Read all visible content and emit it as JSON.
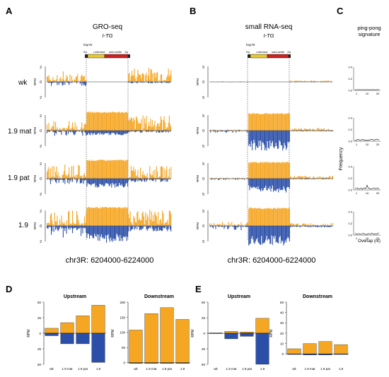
{
  "colors": {
    "sense": "#f5a623",
    "antisense": "#2b4fa8",
    "gene_box": "#e8c832",
    "mini_white": "#cc2222",
    "axis": "#222222"
  },
  "panels": {
    "A": {
      "letter": "A",
      "title": "GRO-seq",
      "subtitle": "I-TG",
      "construct": {
        "hsp70": "hsp70",
        "five_prime": "5'p",
        "i_element": "i-element",
        "mini_white": "mini-white",
        "three_prime": "3'p"
      },
      "yaxis_label": "RPM",
      "ticks": [
        "2",
        "0",
        "2"
      ],
      "tracks": [
        "wk",
        "1.9 mat",
        "1.9 pat",
        "1.9"
      ],
      "coordinates": "chr3R: 6204000-6224000"
    },
    "B": {
      "letter": "B",
      "title": "small RNA-seq",
      "subtitle": "I-TG",
      "construct": {
        "hsp70": "hsp70",
        "five_prime": "5'p",
        "i_element": "i-element",
        "mini_white": "mini-white",
        "three_prime": "3'p"
      },
      "yaxis_label": "RPM",
      "ticks": [
        "5",
        "0",
        "5"
      ],
      "coordinates": "chr3R: 6204000-6224000"
    },
    "C": {
      "letter": "C",
      "title_line1": "ping-pong",
      "title_line2": "signature",
      "ylabel": "Frequency",
      "xlabel": "Overlap (nt)",
      "y_ticks": [
        "0.4",
        "0.2",
        "0.0"
      ],
      "x_ticks": [
        "1",
        "10",
        "20"
      ]
    },
    "D": {
      "letter": "D"
    },
    "E": {
      "letter": "E"
    }
  },
  "chart_data": [
    {
      "type": "bar",
      "panel": "D",
      "title": "Upstream",
      "ylabel": "RPM",
      "categories": [
        "wk",
        "1.9 mat",
        "1.9 pat",
        "1.9"
      ],
      "series": [
        {
          "values": [
            8,
            17,
            28,
            45
          ]
        },
        {
          "values": [
            -4,
            -17,
            -17,
            -47
          ]
        }
      ],
      "ylim": [
        -50,
        50
      ],
      "y_ticks": [
        -50,
        -25,
        0,
        25,
        50
      ],
      "y_tick_labels": [
        "50",
        "25",
        "0",
        "25",
        "50"
      ]
    },
    {
      "type": "bar",
      "panel": "D",
      "title": "Downstream",
      "ylabel": "RPM",
      "categories": [
        "wk",
        "1.9 mat",
        "1.9 pat",
        "1.9"
      ],
      "series": [
        {
          "values": [
            108,
            162,
            182,
            143
          ]
        },
        {
          "values": [
            -2,
            -2,
            -2,
            -2
          ]
        }
      ],
      "ylim": [
        -5,
        200
      ],
      "y_ticks": [
        0,
        50,
        100,
        150,
        200
      ],
      "y_tick_labels": [
        "0",
        "50",
        "100",
        "150",
        "200"
      ]
    },
    {
      "type": "bar",
      "panel": "E",
      "title": "Upstream",
      "ylabel": "RPM",
      "categories": [
        "wk",
        "1.9 mat",
        "1.9 pat",
        "1.9"
      ],
      "series": [
        {
          "values": [
            0.5,
            3,
            2,
            24
          ]
        },
        {
          "values": [
            -0.5,
            -9,
            -5,
            -50
          ]
        }
      ],
      "ylim": [
        -50,
        50
      ],
      "y_ticks": [
        -50,
        -25,
        0,
        25,
        50
      ],
      "y_tick_labels": [
        "50",
        "25",
        "0",
        "25",
        "50"
      ]
    },
    {
      "type": "bar",
      "panel": "E",
      "title": "Downstream",
      "ylabel": "RPM",
      "categories": [
        "wk",
        "1.9 mat",
        "1.9 pat",
        "1.9"
      ],
      "series": [
        {
          "values": [
            5,
            10,
            12,
            9
          ]
        },
        {
          "values": [
            -0.5,
            -1,
            -1,
            -0.5
          ]
        }
      ],
      "ylim": [
        -10,
        50
      ],
      "y_ticks": [
        0,
        10,
        20,
        30,
        40,
        50
      ],
      "y_tick_labels": [
        "0",
        "10",
        "20",
        "30",
        "40",
        "50"
      ]
    }
  ]
}
